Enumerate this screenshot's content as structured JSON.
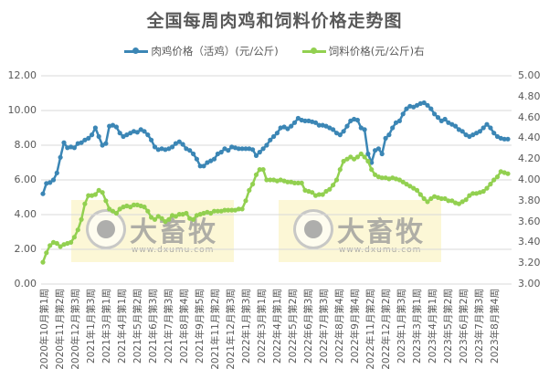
{
  "chart_data": {
    "type": "line",
    "title": "全国每周肉鸡和饲料价格走势图",
    "xlabel": "",
    "ylabel": "",
    "ylabel_right": "",
    "ylim": [
      0,
      12
    ],
    "ylim_right": [
      3.0,
      5.0
    ],
    "yticks": [
      "0.00",
      "2.00",
      "4.00",
      "6.00",
      "8.00",
      "10.00",
      "12.00"
    ],
    "yticks_right": [
      "3.00",
      "3.20",
      "3.40",
      "3.60",
      "3.80",
      "4.00",
      "4.20",
      "4.40",
      "4.60",
      "4.80",
      "5.00"
    ],
    "grid": true,
    "legend_position": "top",
    "x_tick_labels": [
      "2020年10月第1周",
      "2020年11月第2周",
      "2020年12月第3周",
      "2021年1月第3周",
      "2021年3月第1周",
      "2021年4月第1周",
      "2021年5月第2周",
      "2021年6月第3周",
      "2021年7月第3周",
      "2021年8月第4周",
      "2021年9月第5周",
      "2021年11月第2周",
      "2021年12月第3周",
      "2022年1月第3周",
      "2022年3月第1周",
      "2022年4月第1周",
      "2022年5月第2周",
      "2022年6月第3周",
      "2022年7月第3周",
      "2022年8月第4周",
      "2022年9月第4周",
      "2022年11月第2周",
      "2022年12月第2周",
      "2023年1月第3周",
      "2023年3月第1周",
      "2023年4月第1周",
      "2023年5月第2周",
      "2023年6月第2周",
      "2023年7月第3周",
      "2023年8月第4周"
    ],
    "series": [
      {
        "name": "肉鸡价格（活鸡）(元/公斤)",
        "axis": "left",
        "color": "#3B86B5",
        "values": [
          5.2,
          5.8,
          5.85,
          6.0,
          6.4,
          7.3,
          8.15,
          7.85,
          7.9,
          7.85,
          8.1,
          8.15,
          8.3,
          8.4,
          8.6,
          9.0,
          8.5,
          8.0,
          8.1,
          9.1,
          9.15,
          9.05,
          8.7,
          8.5,
          8.6,
          8.7,
          8.8,
          8.75,
          8.9,
          8.8,
          8.6,
          8.3,
          7.9,
          7.75,
          7.8,
          7.75,
          7.8,
          7.9,
          8.1,
          8.2,
          8.05,
          7.8,
          7.7,
          7.5,
          7.2,
          6.8,
          6.8,
          7.0,
          7.1,
          7.2,
          7.5,
          7.6,
          7.8,
          7.7,
          7.9,
          7.85,
          7.8,
          7.8,
          7.8,
          7.8,
          7.75,
          7.4,
          7.6,
          7.8,
          8.0,
          8.3,
          8.5,
          8.7,
          9.0,
          9.05,
          8.95,
          9.1,
          9.3,
          9.55,
          9.45,
          9.4,
          9.4,
          9.35,
          9.3,
          9.15,
          9.15,
          9.1,
          9.0,
          8.9,
          8.7,
          8.6,
          8.8,
          9.1,
          9.4,
          9.5,
          9.45,
          9.0,
          8.9,
          7.5,
          7.0,
          7.7,
          7.8,
          7.5,
          8.4,
          8.6,
          9.0,
          9.3,
          9.4,
          9.8,
          10.1,
          10.25,
          10.2,
          10.3,
          10.4,
          10.45,
          10.3,
          10.1,
          9.8,
          9.6,
          9.4,
          9.5,
          9.3,
          9.2,
          9.1,
          8.9,
          8.8,
          8.6,
          8.5,
          8.6,
          8.7,
          8.8,
          9.0,
          9.2,
          9.0,
          8.7,
          8.5,
          8.4,
          8.35,
          8.35
        ],
        "label_hint": "blue line with round markers"
      },
      {
        "name": "饲料价格(元/公斤)右",
        "axis": "right",
        "color": "#92D050",
        "values": [
          3.21,
          3.3,
          3.37,
          3.4,
          3.39,
          3.36,
          3.38,
          3.39,
          3.4,
          3.45,
          3.52,
          3.62,
          3.77,
          3.85,
          3.85,
          3.86,
          3.9,
          3.88,
          3.8,
          3.72,
          3.7,
          3.68,
          3.72,
          3.74,
          3.75,
          3.74,
          3.76,
          3.76,
          3.75,
          3.74,
          3.7,
          3.64,
          3.62,
          3.65,
          3.63,
          3.6,
          3.62,
          3.66,
          3.65,
          3.67,
          3.67,
          3.68,
          3.63,
          3.62,
          3.66,
          3.67,
          3.68,
          3.69,
          3.68,
          3.7,
          3.7,
          3.7,
          3.71,
          3.71,
          3.71,
          3.71,
          3.72,
          3.72,
          3.8,
          3.9,
          3.96,
          4.05,
          4.1,
          4.1,
          4.0,
          4.0,
          4.0,
          3.99,
          4.0,
          3.99,
          3.98,
          3.98,
          3.97,
          3.97,
          3.97,
          3.9,
          3.89,
          3.88,
          3.85,
          3.86,
          3.86,
          3.89,
          3.91,
          3.95,
          4.0,
          4.1,
          4.18,
          4.2,
          4.22,
          4.2,
          4.22,
          4.25,
          4.22,
          4.18,
          4.1,
          4.05,
          4.03,
          4.02,
          4.02,
          4.01,
          4.02,
          4.01,
          4.0,
          3.98,
          3.96,
          3.94,
          3.92,
          3.9,
          3.86,
          3.82,
          3.79,
          3.82,
          3.84,
          3.83,
          3.82,
          3.82,
          3.8,
          3.8,
          3.78,
          3.77,
          3.79,
          3.81,
          3.85,
          3.87,
          3.87,
          3.88,
          3.89,
          3.92,
          3.96,
          4.0,
          4.03,
          4.08,
          4.07,
          4.06
        ],
        "label_hint": "green line with round markers"
      }
    ]
  },
  "watermarks": [
    {
      "brand": "大畜牧",
      "url": "www.dxumu.com"
    },
    {
      "brand": "大畜牧",
      "url": "www.dxumu.com"
    }
  ]
}
